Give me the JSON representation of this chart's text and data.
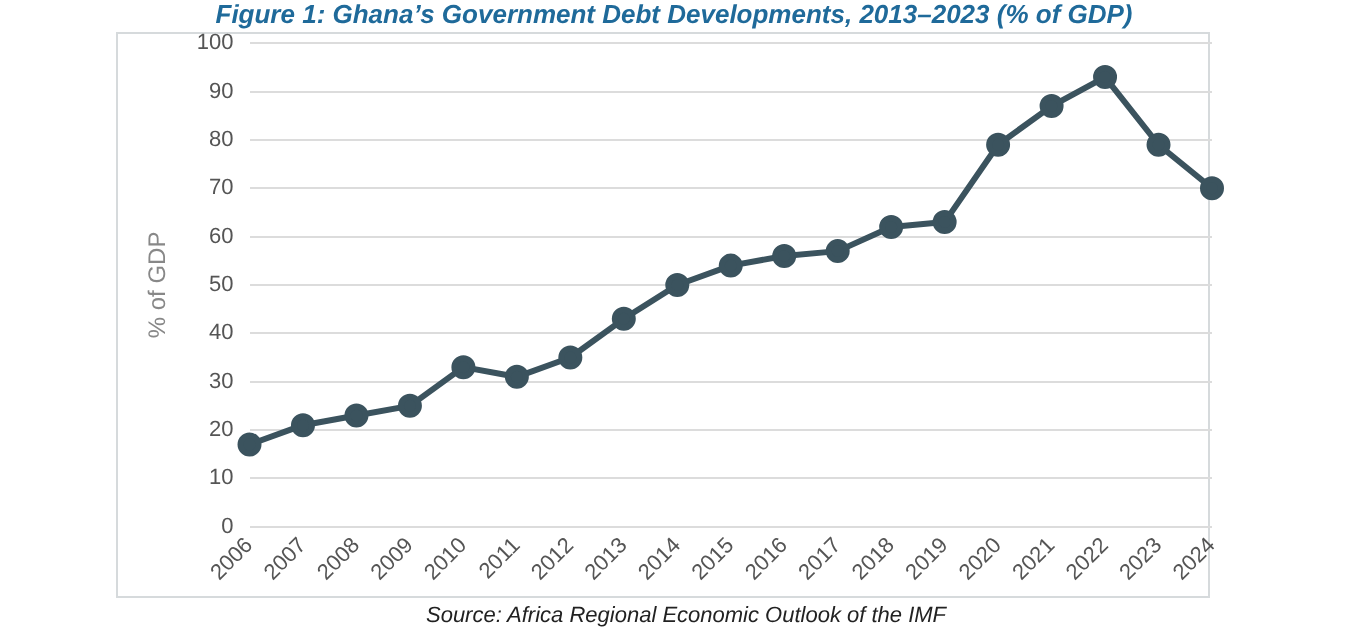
{
  "chart_data": {
    "type": "line",
    "title": "Figure 1: Ghana’s Government Debt Developments, 2013–2023 (% of GDP)",
    "ylabel": "% of GDP",
    "categories": [
      "2006",
      "2007",
      "2008",
      "2009",
      "2010",
      "2011",
      "2012",
      "2013",
      "2014",
      "2015",
      "2016",
      "2017",
      "2018",
      "2019",
      "2020",
      "2021",
      "2022",
      "2023",
      "2024"
    ],
    "series": [
      {
        "color": "#3b535e",
        "values": [
          17,
          21,
          23,
          25,
          33,
          31,
          35,
          43,
          50,
          54,
          56,
          57,
          62,
          63,
          79,
          87,
          93,
          79,
          70
        ]
      }
    ],
    "ylim": [
      0,
      100
    ],
    "yticks": [
      0,
      10,
      20,
      30,
      40,
      50,
      60,
      70,
      80,
      90,
      100
    ],
    "grid": "y",
    "marker": "circle",
    "line_style": "solid",
    "annotations": [
      "Source: Africa Regional Economic Outlook of the IMF"
    ]
  }
}
